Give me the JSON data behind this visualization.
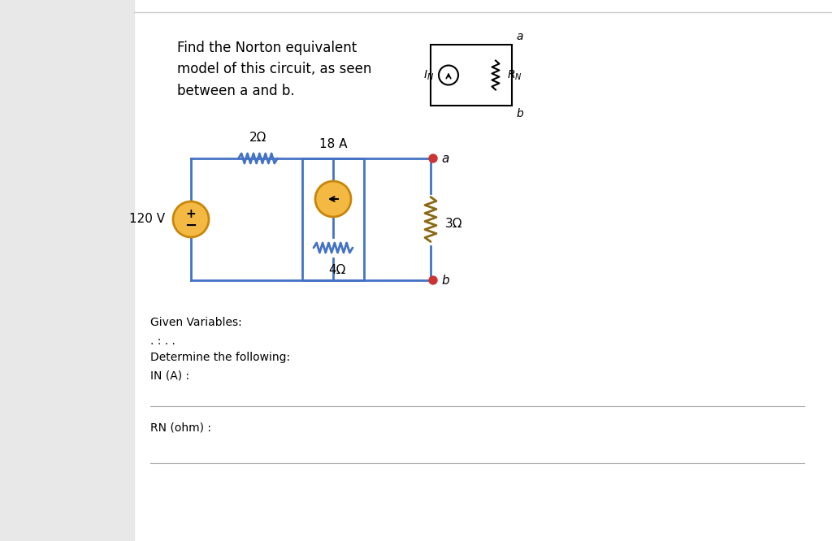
{
  "page_color": "#FFFFFF",
  "bg_color": "#F2F2F2",
  "circuit_color": "#4472C4",
  "source_fill": "#F4B942",
  "source_edge": "#C8860A",
  "resistor_3_color": "#8B6914",
  "wire_lw": 2.0,
  "title_text": "Find the Norton equivalent\nmodel of this circuit, as seen\nbetween a and b.",
  "label_18A": "18 A",
  "label_2ohm": "2Ω",
  "label_4ohm": "4Ω",
  "label_3ohm": "3Ω",
  "label_120V": "120 V",
  "given_text": "Given Variables:",
  "dots_text": ". : . .",
  "determine_text": "Determine the following:",
  "in_label": "IN (A) :",
  "rn_label": "RN (ohm) :"
}
